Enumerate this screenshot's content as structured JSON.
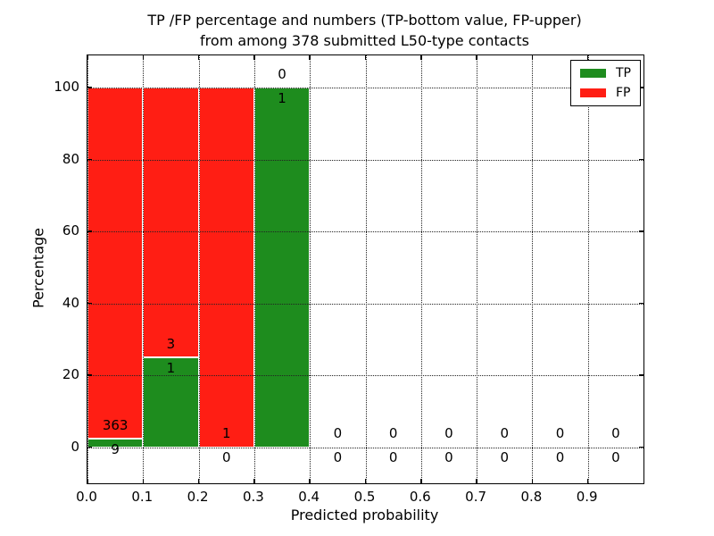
{
  "chart_data": {
    "type": "bar",
    "stacked": true,
    "title": "TP /FP percentage and numbers (TP-bottom value, FP-upper)\nfrom among 378 submitted L50-type contacts",
    "title_lines": [
      "TP /FP percentage and numbers (TP-bottom value, FP-upper)",
      "from among 378 submitted L50-type contacts"
    ],
    "xlabel": "Predicted probability",
    "ylabel": "Percentage",
    "xlim": [
      0.0,
      1.0
    ],
    "ylim_display": [
      -10,
      109
    ],
    "y_axis_range": [
      0,
      100
    ],
    "x_tick_values": [
      0.0,
      0.1,
      0.2,
      0.3,
      0.4,
      0.5,
      0.6,
      0.7,
      0.8,
      0.9
    ],
    "x_tick_labels": [
      "0.0",
      "0.1",
      "0.2",
      "0.3",
      "0.4",
      "0.5",
      "0.6",
      "0.7",
      "0.8",
      "0.9"
    ],
    "y_tick_values": [
      0,
      20,
      40,
      60,
      80,
      100
    ],
    "y_tick_labels": [
      "0",
      "20",
      "40",
      "60",
      "80",
      "100"
    ],
    "grid": {
      "style": "dotted",
      "color": "#222222",
      "above_bars": true
    },
    "bar_width": 0.1,
    "colors": {
      "tp": "#1e8c1e",
      "fp": "#ff1e14",
      "bar_edge": "#ffffff"
    },
    "legend": {
      "position": "upper-right",
      "entries": [
        {
          "name": "TP",
          "color": "#1e8c1e"
        },
        {
          "name": "FP",
          "color": "#ff1e14"
        }
      ]
    },
    "annotation_offsets": {
      "fp_label": 3.8,
      "tp_label": -2.9
    },
    "bins": [
      {
        "x_start": 0.0,
        "x_end": 0.1,
        "tp_count": 9,
        "fp_count": 363,
        "tp_percent": 2.42,
        "fp_percent": 97.58
      },
      {
        "x_start": 0.1,
        "x_end": 0.2,
        "tp_count": 1,
        "fp_count": 3,
        "tp_percent": 25.0,
        "fp_percent": 75.0
      },
      {
        "x_start": 0.2,
        "x_end": 0.3,
        "tp_count": 0,
        "fp_count": 1,
        "tp_percent": 0.0,
        "fp_percent": 100.0
      },
      {
        "x_start": 0.3,
        "x_end": 0.4,
        "tp_count": 1,
        "fp_count": 0,
        "tp_percent": 100.0,
        "fp_percent": 0.0
      },
      {
        "x_start": 0.4,
        "x_end": 0.5,
        "tp_count": 0,
        "fp_count": 0,
        "tp_percent": 0.0,
        "fp_percent": 0.0
      },
      {
        "x_start": 0.5,
        "x_end": 0.6,
        "tp_count": 0,
        "fp_count": 0,
        "tp_percent": 0.0,
        "fp_percent": 0.0
      },
      {
        "x_start": 0.6,
        "x_end": 0.7,
        "tp_count": 0,
        "fp_count": 0,
        "tp_percent": 0.0,
        "fp_percent": 0.0
      },
      {
        "x_start": 0.7,
        "x_end": 0.8,
        "tp_count": 0,
        "fp_count": 0,
        "tp_percent": 0.0,
        "fp_percent": 0.0
      },
      {
        "x_start": 0.8,
        "x_end": 0.9,
        "tp_count": 0,
        "fp_count": 0,
        "tp_percent": 0.0,
        "fp_percent": 0.0
      },
      {
        "x_start": 0.9,
        "x_end": 1.0,
        "tp_count": 0,
        "fp_count": 0,
        "tp_percent": 0.0,
        "fp_percent": 0.0
      }
    ],
    "totals": {
      "submitted_contacts": 378
    }
  }
}
